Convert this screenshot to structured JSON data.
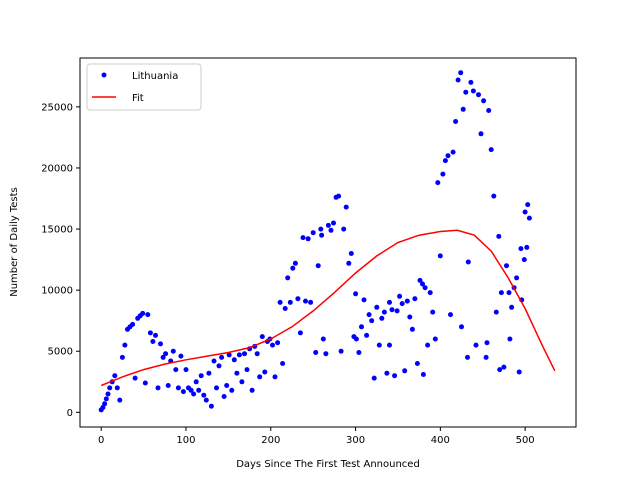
{
  "chart_data": {
    "type": "scatter",
    "xlabel": "Days Since The First Test Announced",
    "ylabel": "Number of Daily Tests",
    "xlim": [
      -25,
      560
    ],
    "ylim": [
      -1200,
      29000
    ],
    "xticks": [
      0,
      100,
      200,
      300,
      400,
      500
    ],
    "yticks": [
      0,
      5000,
      10000,
      15000,
      20000,
      25000
    ],
    "legend_position": "upper-left",
    "grid": false,
    "colors": {
      "points": "#0000ff",
      "fit": "#ff0000"
    },
    "series": [
      {
        "name": "Lithuania",
        "style": "points",
        "x": [
          0,
          2,
          4,
          6,
          8,
          10,
          13,
          16,
          19,
          22,
          25,
          28,
          31,
          34,
          37,
          40,
          43,
          46,
          49,
          52,
          55,
          58,
          61,
          64,
          67,
          70,
          73,
          76,
          79,
          82,
          85,
          88,
          91,
          94,
          97,
          100,
          103,
          106,
          109,
          112,
          115,
          118,
          121,
          124,
          127,
          130,
          133,
          136,
          139,
          142,
          145,
          148,
          151,
          154,
          157,
          160,
          163,
          166,
          169,
          172,
          175,
          178,
          181,
          184,
          187,
          190,
          193,
          196,
          199,
          202,
          205,
          208,
          211,
          214,
          217,
          220,
          223,
          226,
          229,
          232,
          235,
          238,
          241,
          244,
          247,
          250,
          253,
          256,
          259,
          262,
          265,
          268,
          271,
          274,
          277,
          280,
          283,
          286,
          289,
          292,
          295,
          298,
          301,
          304,
          307,
          310,
          313,
          316,
          319,
          322,
          325,
          328,
          331,
          334,
          337,
          340,
          343,
          346,
          349,
          352,
          355,
          358,
          361,
          364,
          367,
          370,
          373,
          376,
          379,
          382,
          385,
          388,
          391,
          394,
          397,
          400,
          403,
          406,
          409,
          412,
          415,
          418,
          421,
          424,
          427,
          430,
          433,
          436,
          439,
          442,
          445,
          448,
          451,
          454,
          457,
          460,
          463,
          466,
          469,
          472,
          475,
          478,
          481,
          484,
          487,
          490,
          493,
          496,
          499,
          502,
          505
        ],
        "y": [
          200,
          400,
          700,
          1100,
          1500,
          2000,
          2500,
          3000,
          2000,
          1000,
          4500,
          5500,
          6800,
          7000,
          7200,
          2800,
          7700,
          7900,
          8100,
          2400,
          8000,
          6500,
          5800,
          6300,
          2000,
          5600,
          4500,
          4800,
          2200,
          4200,
          5000,
          3500,
          2000,
          4600,
          1700,
          3500,
          2000,
          1800,
          1500,
          2500,
          1800,
          3000,
          1400,
          1000,
          3200,
          500,
          4200,
          2000,
          3800,
          4500,
          1300,
          2200,
          4700,
          1800,
          4300,
          3200,
          4700,
          2500,
          4800,
          3500,
          5200,
          1800,
          5400,
          4800,
          2900,
          6200,
          3300,
          5800,
          6000,
          5500,
          2900,
          5700,
          9000,
          4000,
          8500,
          11000,
          9000,
          11800,
          12200,
          9300,
          6500,
          14300,
          9100,
          14200,
          9000,
          14700,
          4900,
          12000,
          15000,
          6000,
          4800,
          15300,
          14900,
          15500,
          17600,
          17700,
          5000,
          15000,
          16800,
          12200,
          13000,
          6200,
          6000,
          4900,
          7000,
          9200,
          6300,
          8000,
          7500,
          2800,
          8600,
          5500,
          7700,
          8200,
          3200,
          9000,
          8400,
          3000,
          8300,
          9500,
          8900,
          3400,
          9100,
          7800,
          6800,
          9300,
          4000,
          10800,
          10500,
          10200,
          5500,
          9800,
          8200,
          6000,
          18800,
          12800,
          19500,
          20600,
          21000,
          8000,
          21300,
          23800,
          27200,
          27800,
          24800,
          26200,
          12300,
          27000,
          26300,
          5500,
          26000,
          22800,
          25500,
          4500,
          24700,
          21500,
          17700,
          8200,
          14400,
          9800,
          3700,
          12000,
          9800,
          8600,
          10200,
          11000,
          3300,
          9200,
          12500,
          13500,
          15900
        ],
        "extra_points": {
          "x": [
            260,
            300,
            340,
            380,
            425,
            432,
            455,
            470,
            482,
            495,
            500,
            503
          ],
          "y": [
            14500,
            9700,
            5500,
            3100,
            7000,
            4500,
            5700,
            3500,
            6000,
            13400,
            16400,
            17000
          ]
        }
      },
      {
        "name": "Fit",
        "style": "line",
        "x": [
          0,
          25,
          50,
          75,
          100,
          125,
          150,
          175,
          200,
          225,
          250,
          275,
          300,
          325,
          350,
          375,
          400,
          420,
          440,
          460,
          480,
          500,
          520,
          535
        ],
        "y": [
          2200,
          2900,
          3500,
          3950,
          4300,
          4600,
          4900,
          5300,
          6000,
          7000,
          8300,
          9800,
          11400,
          12800,
          13900,
          14500,
          14800,
          14900,
          14500,
          13200,
          11000,
          8500,
          5500,
          3400
        ]
      }
    ]
  }
}
